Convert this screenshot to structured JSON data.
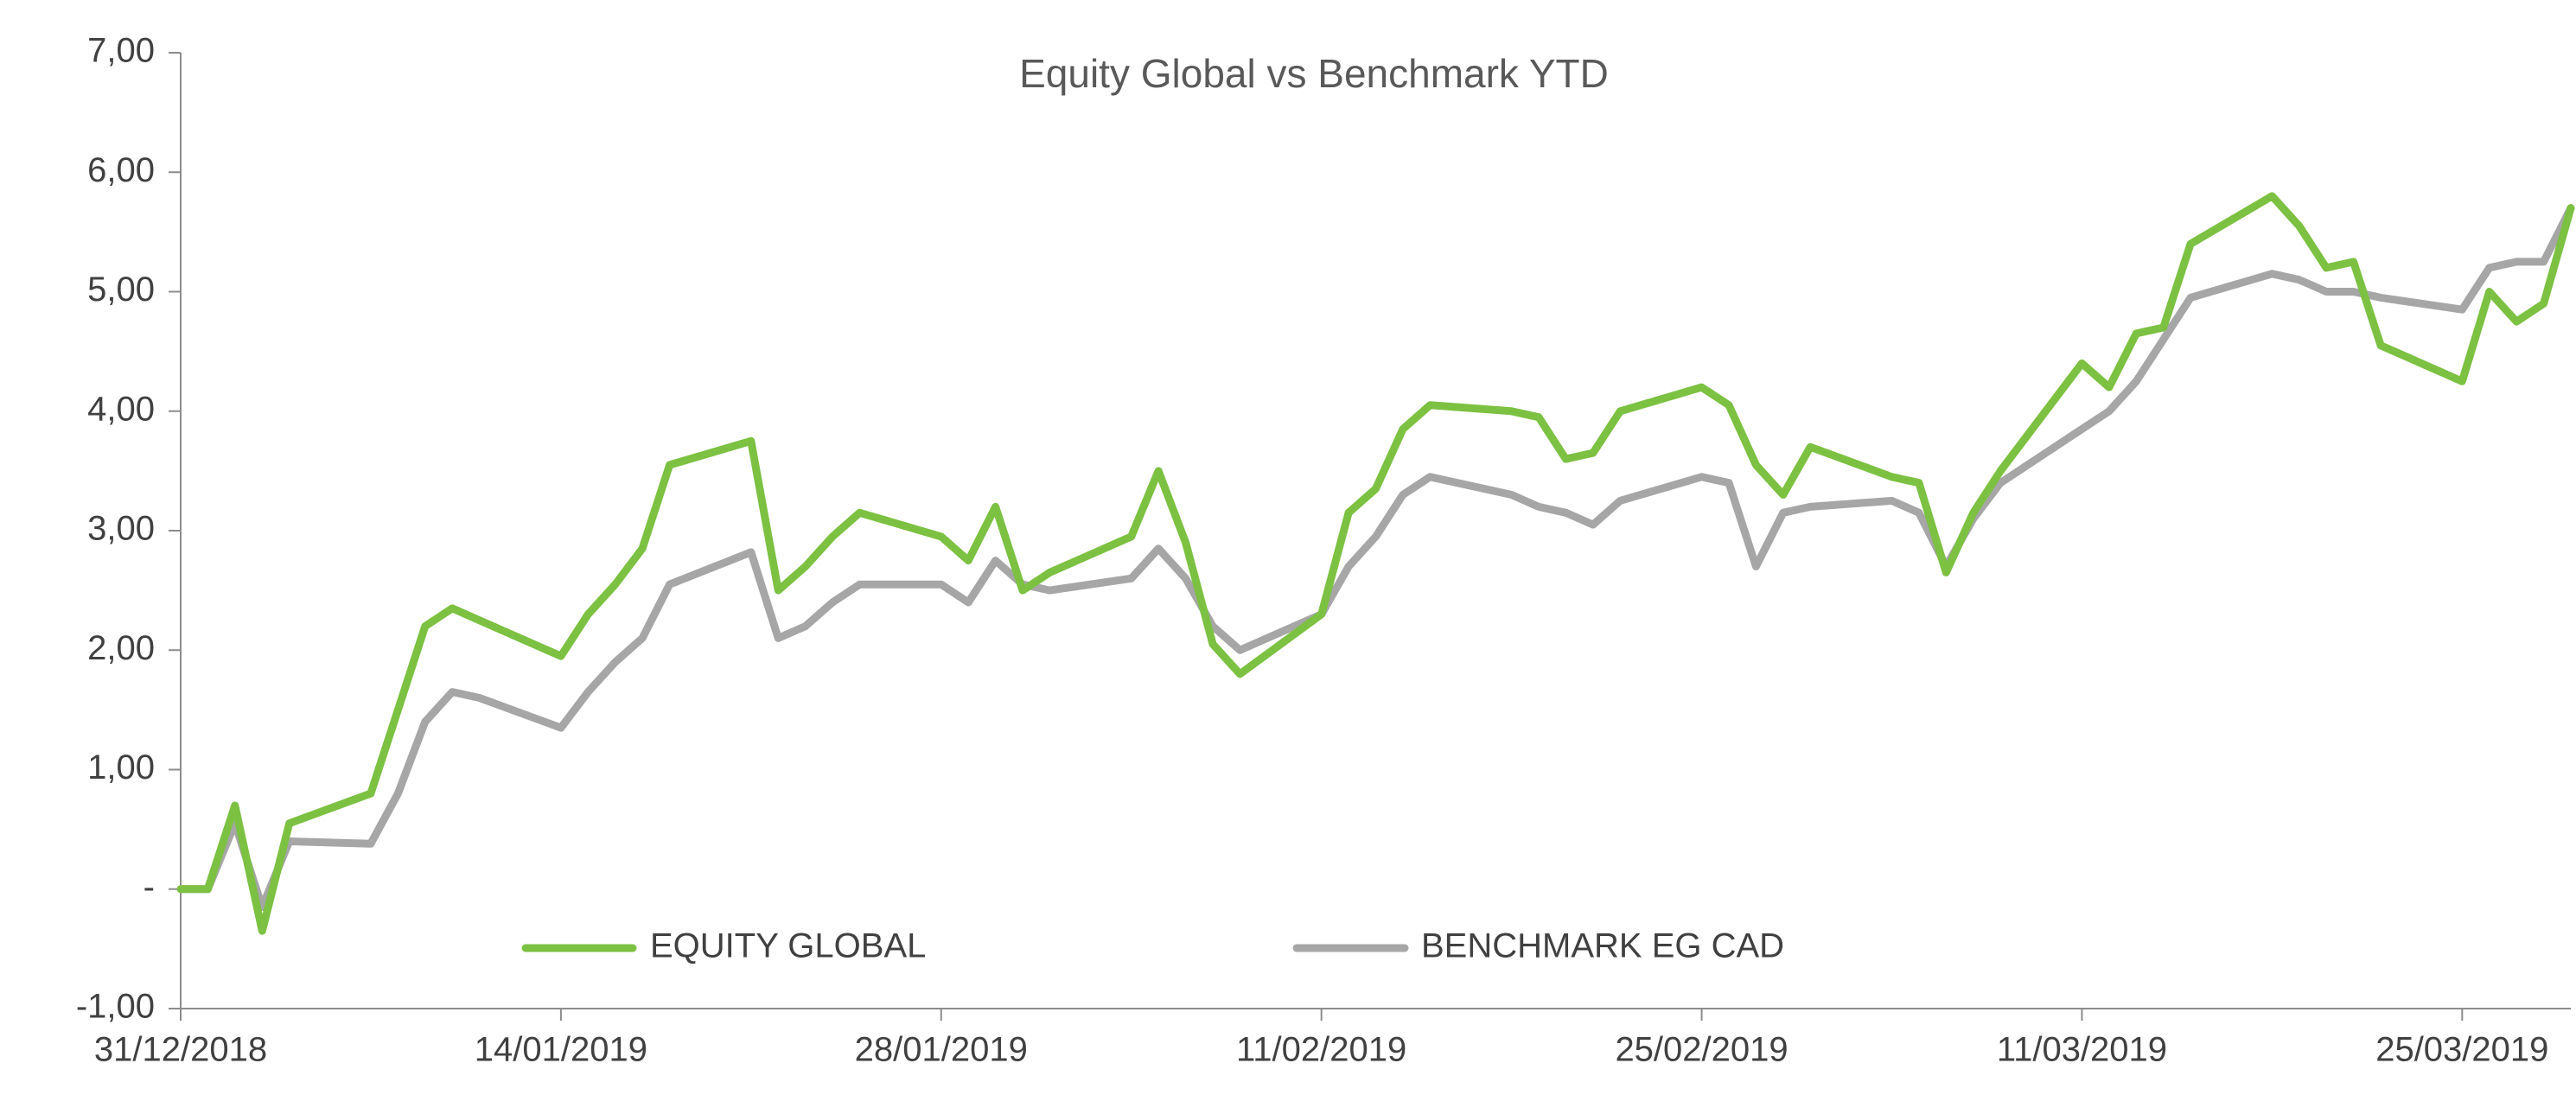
{
  "chart_data": {
    "type": "line",
    "title": "Equity Global vs Benchmark  YTD",
    "x": [
      "31/12/2018",
      "01/01/2019",
      "02/01/2019",
      "03/01/2019",
      "04/01/2019",
      "07/01/2019",
      "08/01/2019",
      "09/01/2019",
      "10/01/2019",
      "11/01/2019",
      "14/01/2019",
      "15/01/2019",
      "16/01/2019",
      "17/01/2019",
      "18/01/2019",
      "21/01/2019",
      "22/01/2019",
      "23/01/2019",
      "24/01/2019",
      "25/01/2019",
      "28/01/2019",
      "29/01/2019",
      "30/01/2019",
      "31/01/2019",
      "01/02/2019",
      "04/02/2019",
      "05/02/2019",
      "06/02/2019",
      "07/02/2019",
      "08/02/2019",
      "11/02/2019",
      "12/02/2019",
      "13/02/2019",
      "14/02/2019",
      "15/02/2019",
      "18/02/2019",
      "19/02/2019",
      "20/02/2019",
      "21/02/2019",
      "22/02/2019",
      "25/02/2019",
      "26/02/2019",
      "27/02/2019",
      "28/02/2019",
      "01/03/2019",
      "04/03/2019",
      "05/03/2019",
      "06/03/2019",
      "07/03/2019",
      "08/03/2019",
      "11/03/2019",
      "12/03/2019",
      "13/03/2019",
      "14/03/2019",
      "15/03/2019",
      "18/03/2019",
      "19/03/2019",
      "20/03/2019",
      "21/03/2019",
      "22/03/2019",
      "25/03/2019",
      "26/03/2019",
      "27/03/2019",
      "28/03/2019",
      "29/03/2019"
    ],
    "series": [
      {
        "name": "EQUITY GLOBAL",
        "color": "#7cc142",
        "values": [
          0,
          0,
          0.7,
          -0.35,
          0.55,
          0.8,
          1.5,
          2.2,
          2.35,
          2.25,
          1.95,
          2.3,
          2.55,
          2.85,
          3.55,
          3.75,
          2.5,
          2.7,
          2.95,
          3.15,
          2.95,
          2.75,
          3.2,
          2.5,
          2.65,
          2.95,
          3.5,
          2.9,
          2.05,
          1.8,
          2.3,
          3.15,
          3.35,
          3.85,
          4.05,
          4.0,
          3.95,
          3.6,
          3.65,
          4.0,
          4.2,
          4.05,
          3.55,
          3.3,
          3.7,
          3.45,
          3.4,
          2.65,
          3.15,
          3.5,
          4.4,
          4.2,
          4.65,
          4.7,
          5.4,
          5.8,
          5.55,
          5.2,
          5.25,
          4.55,
          4.25,
          5.0,
          4.75,
          4.9,
          5.7
        ]
      },
      {
        "name": "BENCHMARK EG CAD",
        "color": "#a6a6a6",
        "values": [
          0,
          0,
          0.55,
          -0.15,
          0.4,
          0.38,
          0.8,
          1.4,
          1.65,
          1.6,
          1.35,
          1.65,
          1.9,
          2.1,
          2.55,
          2.82,
          2.1,
          2.2,
          2.4,
          2.55,
          2.55,
          2.4,
          2.75,
          2.55,
          2.5,
          2.6,
          2.85,
          2.6,
          2.2,
          2.0,
          2.3,
          2.7,
          2.95,
          3.3,
          3.45,
          3.3,
          3.2,
          3.15,
          3.05,
          3.25,
          3.45,
          3.4,
          2.7,
          3.15,
          3.2,
          3.25,
          3.15,
          2.7,
          3.1,
          3.4,
          3.85,
          4.0,
          4.25,
          4.6,
          4.95,
          5.15,
          5.1,
          5.0,
          5.0,
          4.95,
          4.85,
          5.2,
          5.25,
          5.25,
          5.7
        ]
      }
    ],
    "xlim": [
      "31/12/2018",
      "29/03/2019"
    ],
    "xticks": [
      "31/12/2018",
      "14/01/2019",
      "28/01/2019",
      "11/02/2019",
      "25/02/2019",
      "11/03/2019",
      "25/03/2019"
    ],
    "ylim": [
      -1,
      7
    ],
    "yticks": [
      {
        "value": -1,
        "label": "-1,00"
      },
      {
        "value": 0,
        "label": "-"
      },
      {
        "value": 1,
        "label": "1,00"
      },
      {
        "value": 2,
        "label": "2,00"
      },
      {
        "value": 3,
        "label": "3,00"
      },
      {
        "value": 4,
        "label": "4,00"
      },
      {
        "value": 5,
        "label": "5,00"
      },
      {
        "value": 6,
        "label": "6,00"
      },
      {
        "value": 7,
        "label": "7,00"
      }
    ],
    "grid": false
  }
}
